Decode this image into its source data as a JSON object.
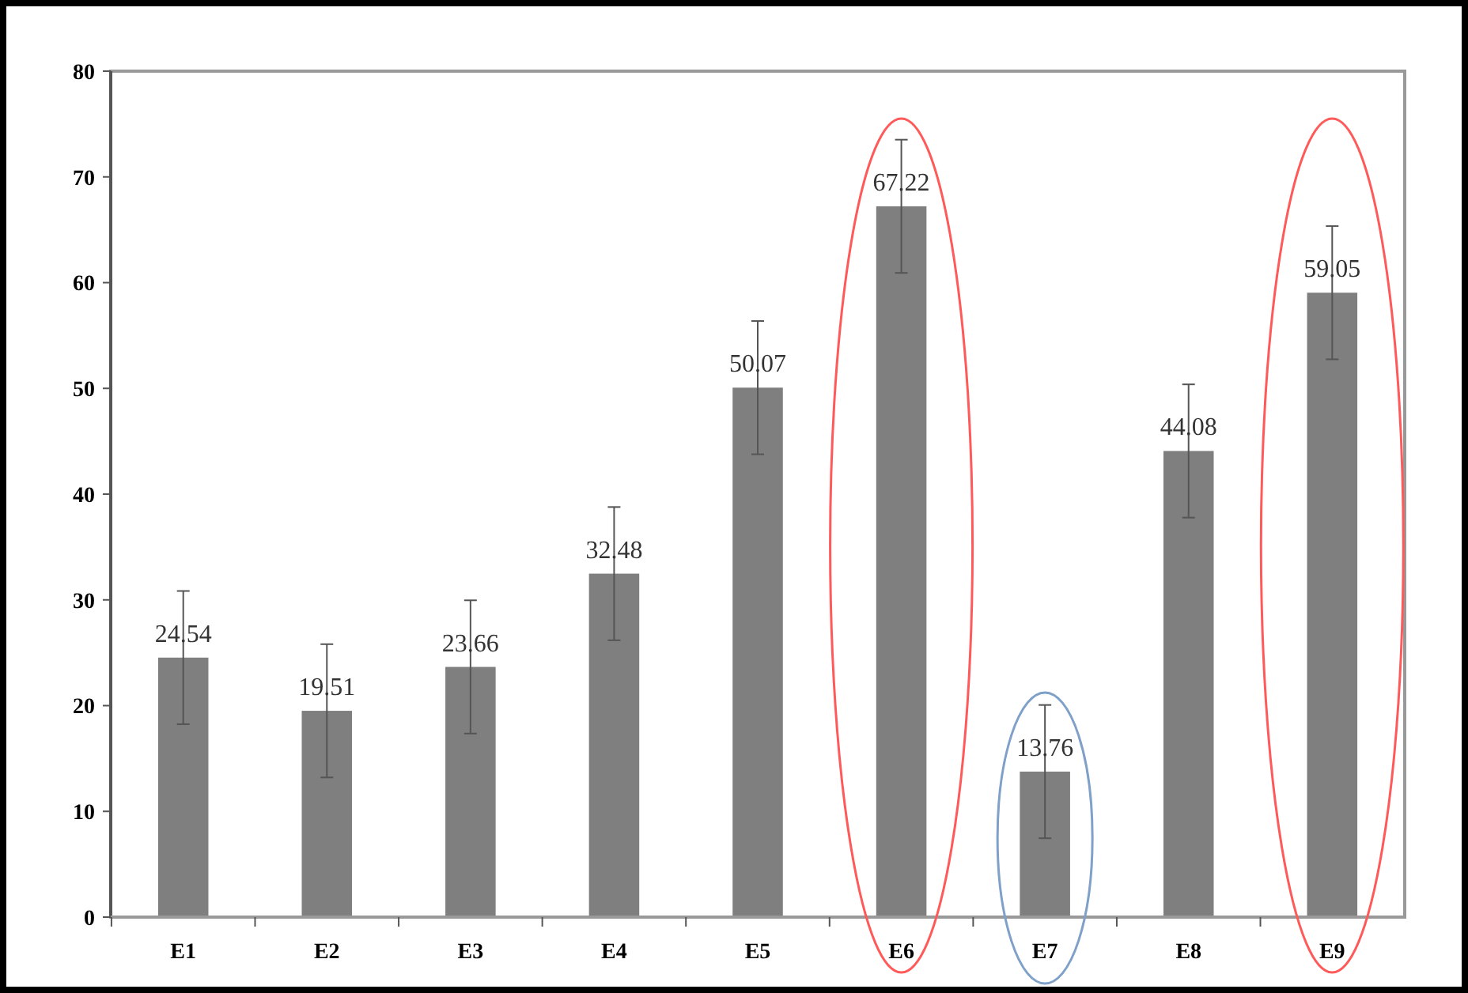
{
  "chart_data": {
    "type": "bar",
    "categories": [
      "E1",
      "E2",
      "E3",
      "E4",
      "E5",
      "E6",
      "E7",
      "E8",
      "E9"
    ],
    "values": [
      24.54,
      19.51,
      23.66,
      32.48,
      50.07,
      67.22,
      13.76,
      44.08,
      59.05
    ],
    "errors": [
      6.3,
      6.3,
      6.3,
      6.3,
      6.3,
      6.3,
      6.3,
      6.3,
      6.3
    ],
    "color": "#7f7f7f",
    "ylim": [
      0,
      80
    ],
    "yticks": [
      0,
      10,
      20,
      30,
      40,
      50,
      60,
      70,
      80
    ],
    "data_labels": true,
    "grid": false
  }
}
